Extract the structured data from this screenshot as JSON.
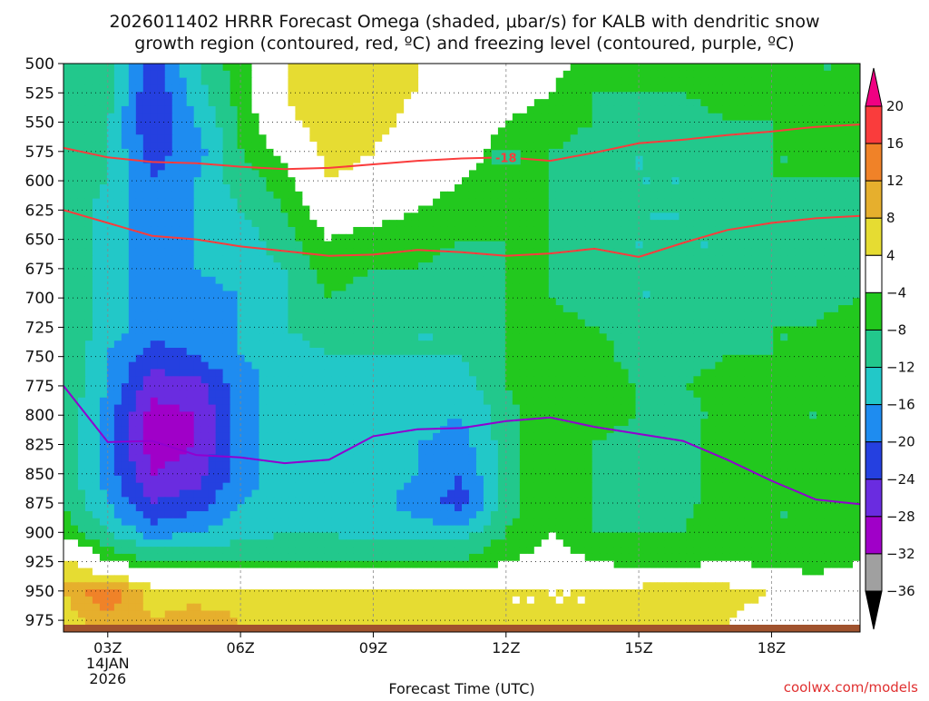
{
  "title": {
    "line1": "2026011402 HRRR Forecast Omega (shaded, μbar/s) for KALB with dendritic snow",
    "line2": "growth region (contoured, red, ºC) and freezing level (contoured, purple, ºC)"
  },
  "credit": "coolwx.com/models",
  "chart_data": {
    "type": "heatmap",
    "xlabel": "Forecast Time (UTC)",
    "x_ticks": [
      {
        "label": "03Z",
        "sub1": "14JAN",
        "sub2": "2026",
        "hour": 3
      },
      {
        "label": "06Z",
        "sub1": "",
        "sub2": "",
        "hour": 6
      },
      {
        "label": "09Z",
        "sub1": "",
        "sub2": "",
        "hour": 9
      },
      {
        "label": "12Z",
        "sub1": "",
        "sub2": "",
        "hour": 12
      },
      {
        "label": "15Z",
        "sub1": "",
        "sub2": "",
        "hour": 15
      },
      {
        "label": "18Z",
        "sub1": "",
        "sub2": "",
        "hour": 18
      }
    ],
    "xlim": [
      2,
      20
    ],
    "ylabel": "",
    "ylim": [
      500,
      985
    ],
    "y_inverted": true,
    "y_ticks": [
      "500",
      "525",
      "550",
      "575",
      "600",
      "625",
      "650",
      "675",
      "700",
      "725",
      "750",
      "775",
      "800",
      "825",
      "850",
      "875",
      "900",
      "925",
      "950",
      "975"
    ],
    "grid": true,
    "colorbar": {
      "levels": [
        -36,
        -32,
        -28,
        -24,
        -20,
        -16,
        -12,
        -8,
        -4,
        4,
        8,
        12,
        16,
        20
      ],
      "labels": [
        "20",
        "16",
        "12",
        "8",
        "4",
        "−4",
        "−8",
        "−12",
        "−16",
        "−20",
        "−24",
        "−28",
        "−32",
        "−36"
      ],
      "colors": [
        "#000000",
        "#a0a0a0",
        "#a000c8",
        "#6a2ce0",
        "#2540e0",
        "#1e8cf0",
        "#22c8c8",
        "#22c88c",
        "#22c81e",
        "#ffffff",
        "#e6dc32",
        "#e6af2d",
        "#f08228",
        "#fa3c3c",
        "#f00082"
      ]
    },
    "omega_field": {
      "hours": [
        2,
        3,
        4,
        5,
        6,
        7,
        8,
        9,
        10,
        11,
        12,
        13,
        14,
        15,
        16,
        17,
        18,
        19,
        20
      ],
      "levels_hpa": [
        500,
        525,
        550,
        575,
        600,
        625,
        650,
        675,
        700,
        725,
        750,
        775,
        800,
        825,
        850,
        875,
        900,
        925,
        950,
        975
      ],
      "values": [
        [
          -8,
          -10,
          -22,
          -12,
          -6,
          4,
          6,
          4,
          4,
          2,
          0,
          -2,
          -6,
          -6,
          -6,
          -6,
          -6,
          -8,
          -8
        ],
        [
          -8,
          -10,
          -24,
          -14,
          -6,
          4,
          8,
          6,
          4,
          2,
          -2,
          -4,
          -8,
          -8,
          -8,
          -6,
          -6,
          -8,
          -8
        ],
        [
          -8,
          -12,
          -24,
          -16,
          -8,
          2,
          8,
          6,
          2,
          0,
          -4,
          -6,
          -8,
          -10,
          -10,
          -8,
          -8,
          -8,
          -8
        ],
        [
          -8,
          -12,
          -22,
          -18,
          -8,
          -2,
          6,
          4,
          0,
          -2,
          -6,
          -8,
          -10,
          -12,
          -12,
          -10,
          -8,
          -8,
          -8
        ],
        [
          -8,
          -12,
          -20,
          -16,
          -10,
          -6,
          4,
          2,
          -2,
          -4,
          -6,
          -8,
          -10,
          -12,
          -12,
          -10,
          -8,
          -8,
          -8
        ],
        [
          -8,
          -14,
          -18,
          -16,
          -12,
          -8,
          0,
          -2,
          -4,
          -6,
          -8,
          -8,
          -10,
          -12,
          -12,
          -10,
          -10,
          -10,
          -8
        ],
        [
          -8,
          -14,
          -18,
          -16,
          -14,
          -10,
          -4,
          -6,
          -6,
          -8,
          -8,
          -8,
          -10,
          -12,
          -12,
          -12,
          -10,
          -10,
          -8
        ],
        [
          -8,
          -14,
          -18,
          -16,
          -14,
          -12,
          -6,
          -8,
          -8,
          -10,
          -8,
          -8,
          -10,
          -12,
          -12,
          -12,
          -10,
          -10,
          -8
        ],
        [
          -8,
          -14,
          -18,
          -18,
          -16,
          -12,
          -8,
          -10,
          -10,
          -12,
          -8,
          -8,
          -10,
          -12,
          -12,
          -12,
          -10,
          -10,
          -8
        ],
        [
          -8,
          -14,
          -18,
          -18,
          -16,
          -12,
          -10,
          -10,
          -12,
          -12,
          -8,
          -6,
          -8,
          -10,
          -12,
          -10,
          -8,
          -8,
          -4
        ],
        [
          -8,
          -16,
          -22,
          -20,
          -16,
          -14,
          -12,
          -12,
          -12,
          -12,
          -8,
          -6,
          -6,
          -10,
          -10,
          -8,
          -8,
          -8,
          -4
        ],
        [
          -8,
          -16,
          -26,
          -26,
          -18,
          -14,
          -14,
          -14,
          -14,
          -14,
          -8,
          -4,
          -6,
          -8,
          -8,
          -6,
          -8,
          -8,
          -6
        ],
        [
          -10,
          -18,
          -30,
          -28,
          -18,
          -14,
          -14,
          -14,
          -14,
          -16,
          -10,
          -4,
          -6,
          -8,
          -10,
          -6,
          -8,
          -8,
          -6
        ],
        [
          -10,
          -18,
          -30,
          -28,
          -18,
          -14,
          -14,
          -14,
          -16,
          -18,
          -10,
          -4,
          -8,
          -10,
          -10,
          -4,
          -8,
          -8,
          -8
        ],
        [
          -10,
          -18,
          -28,
          -26,
          -18,
          -14,
          -14,
          -14,
          -16,
          -20,
          -10,
          -4,
          -8,
          -10,
          -10,
          -4,
          -8,
          -8,
          -8
        ],
        [
          -8,
          -16,
          -24,
          -22,
          -16,
          -14,
          -14,
          -14,
          -18,
          -22,
          -10,
          -4,
          -8,
          -10,
          -10,
          -4,
          -8,
          -8,
          -8
        ],
        [
          -6,
          -12,
          -18,
          -16,
          -14,
          -12,
          -12,
          -14,
          -14,
          -14,
          -8,
          -4,
          -8,
          -8,
          -8,
          -4,
          -8,
          -8,
          -6
        ],
        [
          6,
          -4,
          -8,
          -8,
          -8,
          -8,
          -8,
          -8,
          -8,
          -8,
          -4,
          -2,
          -4,
          -6,
          -6,
          -4,
          -6,
          -8,
          -4
        ],
        [
          8,
          16,
          6,
          6,
          6,
          6,
          6,
          6,
          4,
          4,
          4,
          4,
          4,
          6,
          8,
          6,
          4,
          2,
          2
        ],
        [
          6,
          10,
          8,
          10,
          8,
          6,
          6,
          6,
          6,
          6,
          4,
          4,
          4,
          6,
          6,
          4,
          2,
          2,
          2
        ]
      ]
    },
    "dgz_contours": [
      {
        "label": "-18",
        "color": "#fa3c3c",
        "points": [
          [
            2,
            572
          ],
          [
            3,
            580
          ],
          [
            4,
            584
          ],
          [
            5,
            585
          ],
          [
            6,
            588
          ],
          [
            7,
            590
          ],
          [
            8,
            589
          ],
          [
            9,
            586
          ],
          [
            10,
            583
          ],
          [
            11,
            581
          ],
          [
            12,
            580
          ],
          [
            13,
            583
          ],
          [
            14,
            576
          ],
          [
            15,
            568
          ],
          [
            16,
            565
          ],
          [
            17,
            561
          ],
          [
            18,
            558
          ],
          [
            19,
            554
          ],
          [
            20,
            552
          ]
        ]
      },
      {
        "label": "",
        "color": "#fa3c3c",
        "points": [
          [
            2,
            625
          ],
          [
            3,
            636
          ],
          [
            4,
            647
          ],
          [
            5,
            650
          ],
          [
            6,
            656
          ],
          [
            7,
            660
          ],
          [
            8,
            664
          ],
          [
            9,
            663
          ],
          [
            10,
            659
          ],
          [
            11,
            661
          ],
          [
            12,
            664
          ],
          [
            13,
            662
          ],
          [
            14,
            658
          ],
          [
            15,
            665
          ],
          [
            16,
            653
          ],
          [
            17,
            642
          ],
          [
            18,
            636
          ],
          [
            19,
            632
          ],
          [
            20,
            630
          ]
        ]
      }
    ],
    "freezing_level": {
      "color": "#9000d0",
      "points": [
        [
          2,
          775
        ],
        [
          3,
          823
        ],
        [
          4,
          822
        ],
        [
          5,
          834
        ],
        [
          6,
          836
        ],
        [
          7,
          841
        ],
        [
          8,
          838
        ],
        [
          9,
          818
        ],
        [
          10,
          812
        ],
        [
          11,
          811
        ],
        [
          12,
          805
        ],
        [
          13,
          802
        ],
        [
          14,
          810
        ],
        [
          15,
          816
        ],
        [
          16,
          822
        ],
        [
          17,
          838
        ],
        [
          18,
          856
        ],
        [
          19,
          872
        ],
        [
          20,
          876
        ]
      ]
    },
    "ground_color": "#a0522d"
  }
}
